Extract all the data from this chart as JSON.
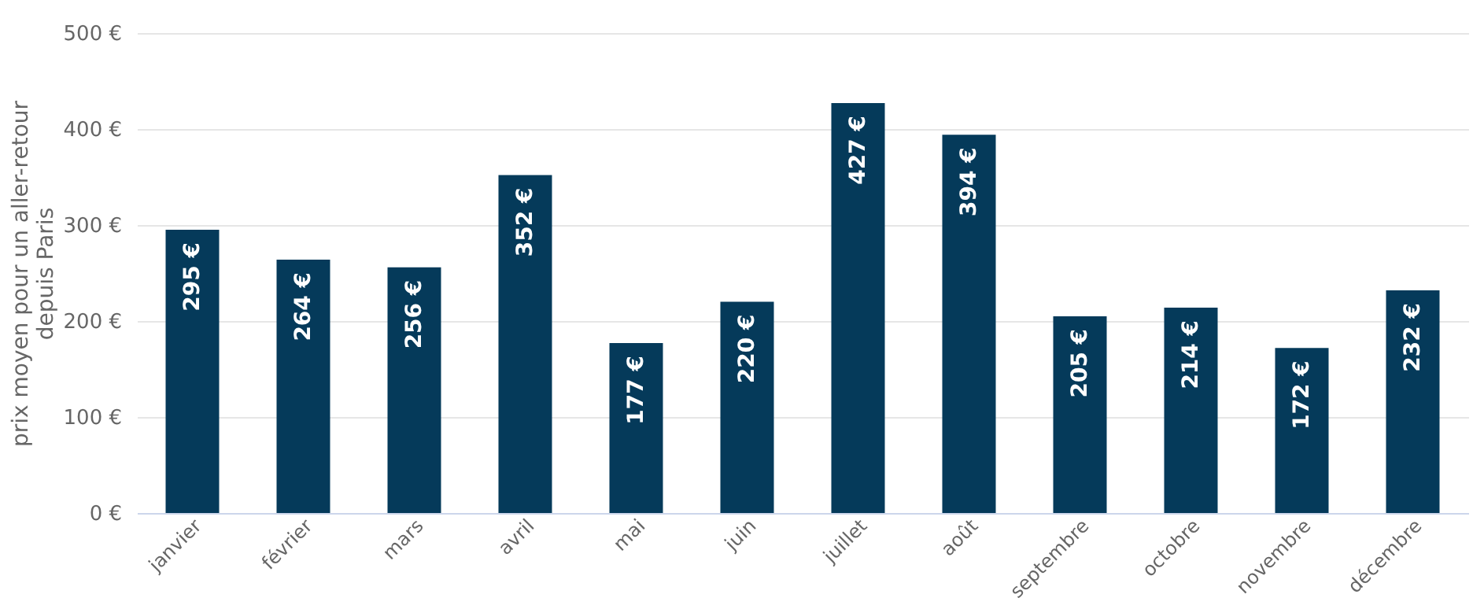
{
  "chart_data": {
    "type": "bar",
    "ylabel": "prix moyen pour un aller-retour\ndepuis Paris",
    "categories": [
      "janvier",
      "février",
      "mars",
      "avril",
      "mai",
      "juin",
      "juillet",
      "août",
      "septembre",
      "octobre",
      "novembre",
      "décembre"
    ],
    "values": [
      295,
      264,
      256,
      352,
      177,
      220,
      427,
      394,
      205,
      214,
      172,
      232
    ],
    "value_labels": [
      "295 €",
      "264 €",
      "256 €",
      "352 €",
      "177 €",
      "220 €",
      "427 €",
      "394 €",
      "205 €",
      "214 €",
      "172 €",
      "232 €"
    ],
    "color": "#053a5a",
    "ylim": [
      0,
      500
    ],
    "yticks": [
      {
        "value": 0,
        "label": "0 €"
      },
      {
        "value": 100,
        "label": "100 €"
      },
      {
        "value": 200,
        "label": "200 €"
      },
      {
        "value": 300,
        "label": "300 €"
      },
      {
        "value": 400,
        "label": "400 €"
      },
      {
        "value": 500,
        "label": "500 €"
      }
    ],
    "grid": "y"
  }
}
